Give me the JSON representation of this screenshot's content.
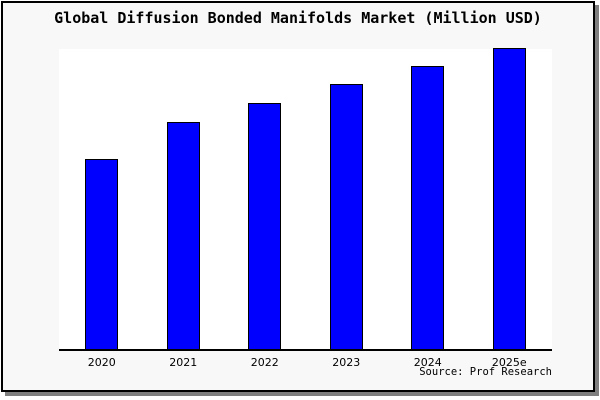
{
  "title": "Global Diffusion Bonded Manifolds Market (Million USD)",
  "source_credit": "Source: Prof Research",
  "colors": {
    "bar_fill": "#0000ff",
    "bar_border": "#000000",
    "frame_background": "#f8f8f8",
    "plot_background": "#ffffff",
    "frame_border": "#000000",
    "frame_shadow": "#7f7f7f",
    "axis_line": "#000000",
    "text": "#000000"
  },
  "chart_data": {
    "type": "bar",
    "title": "Global Diffusion Bonded Manifolds Market (Million USD)",
    "categories": [
      "2020",
      "2021",
      "2022",
      "2023",
      "2024",
      "2025e"
    ],
    "values": [
      63,
      75.2,
      81.6,
      88,
      94,
      100
    ],
    "values_note": "y-axis unlabeled; values are relative bar heights normalized to 2025e = 100",
    "series_name": "Market size (Million USD)",
    "xlabel": "",
    "ylabel": "",
    "ylim": [
      0,
      100.5
    ],
    "grid": false,
    "legend": false,
    "y_ticks_visible": false,
    "bar_color": "#0000ff",
    "source": "Source: Prof Research"
  }
}
